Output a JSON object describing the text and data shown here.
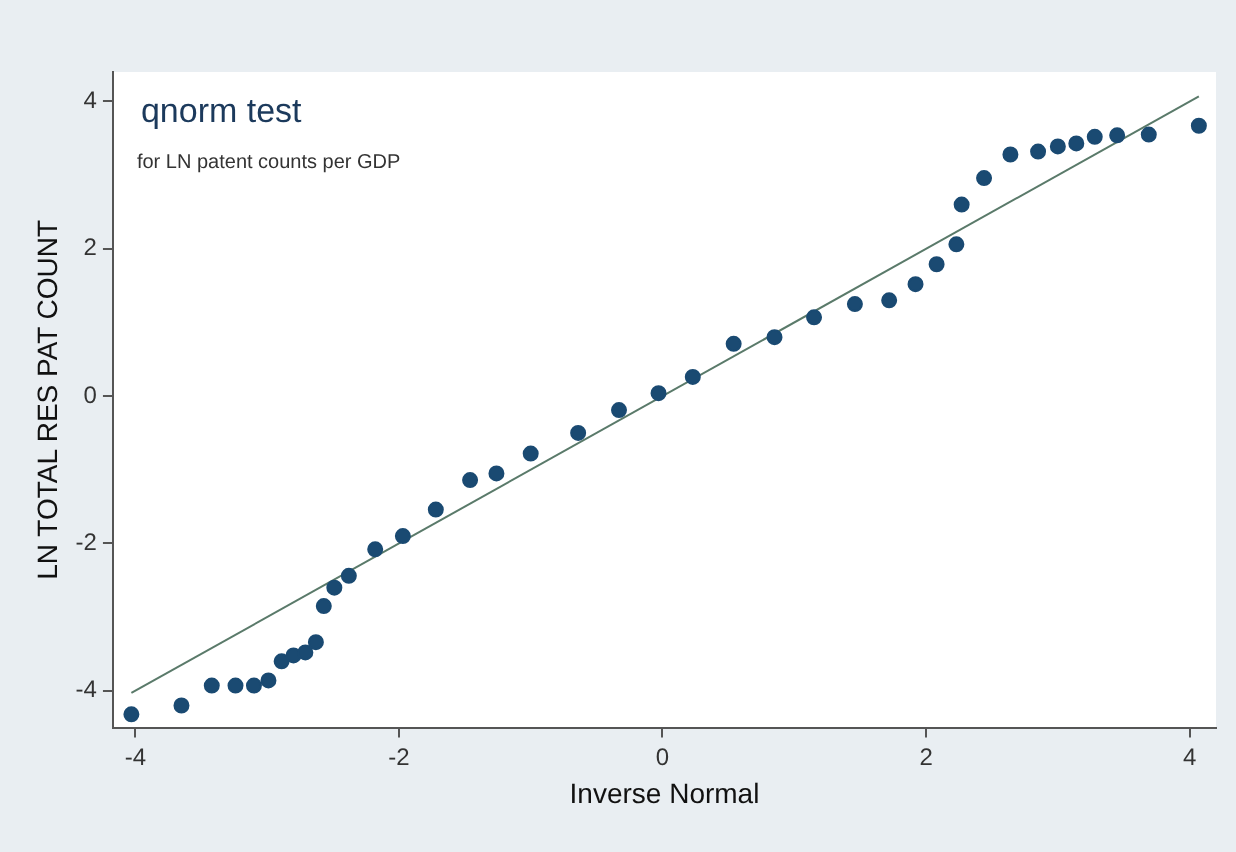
{
  "chart_data": {
    "type": "scatter",
    "title": "qnorm test",
    "subtitle": "for LN patent counts per GDP",
    "xlabel": "Inverse Normal",
    "ylabel": "LN TOTAL RES PAT COUNT",
    "xlim": [
      -4.17,
      4.2
    ],
    "ylim": [
      -4.5,
      4.4
    ],
    "xticks": [
      -4,
      -2,
      0,
      2,
      4
    ],
    "yticks": [
      -4,
      -2,
      0,
      2,
      4
    ],
    "grid": false,
    "legend": false,
    "marker": "circle",
    "series": [
      {
        "type": "scatter",
        "color": "#1a4a72",
        "x": [
          -4.03,
          -3.65,
          -3.42,
          -3.24,
          -3.1,
          -2.99,
          -2.89,
          -2.8,
          -2.71,
          -2.63,
          -2.57,
          -2.49,
          -2.38,
          -2.18,
          -1.97,
          -1.72,
          -1.46,
          -1.26,
          -1.0,
          -0.64,
          -0.33,
          -0.03,
          0.23,
          0.54,
          0.85,
          1.15,
          1.46,
          1.72,
          1.92,
          2.08,
          2.23,
          2.27,
          2.44,
          2.64,
          2.85,
          3.0,
          3.14,
          3.28,
          3.45,
          3.69,
          4.07
        ],
        "values": [
          -4.32,
          -4.2,
          -3.93,
          -3.93,
          -3.93,
          -3.86,
          -3.6,
          -3.52,
          -3.48,
          -3.34,
          -2.85,
          -2.6,
          -2.44,
          -2.08,
          -1.9,
          -1.54,
          -1.14,
          -1.05,
          -0.78,
          -0.5,
          -0.19,
          0.04,
          0.26,
          0.71,
          0.8,
          1.07,
          1.25,
          1.3,
          1.52,
          1.79,
          2.06,
          2.6,
          2.96,
          3.28,
          3.32,
          3.39,
          3.43,
          3.52,
          3.54,
          3.55,
          3.67
        ]
      },
      {
        "type": "line",
        "marker": "none",
        "color": "#5a7a6a",
        "x": [
          -4.03,
          4.07
        ],
        "values": [
          -4.03,
          4.07
        ]
      }
    ]
  }
}
